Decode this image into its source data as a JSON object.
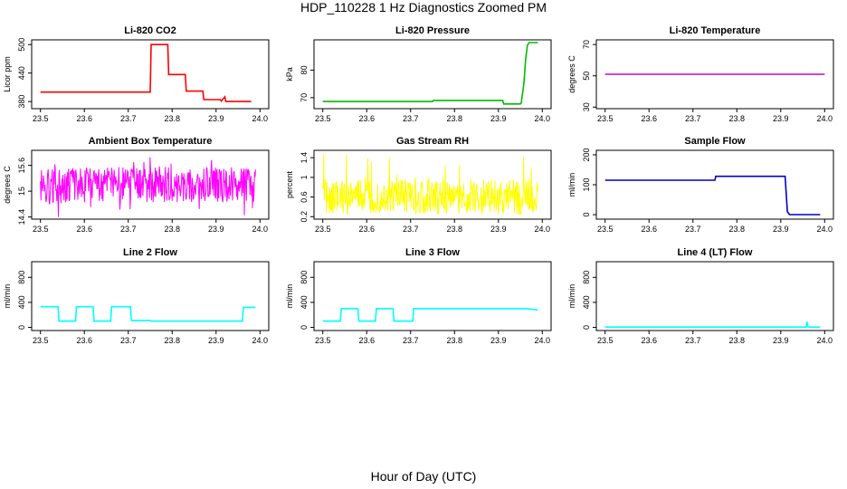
{
  "figure": {
    "title": "HDP_110228  1 Hz Diagnostics Zoomed PM",
    "xlabel": "Hour of Day (UTC)"
  },
  "chart_data": [
    {
      "type": "line",
      "title": "Li-820 CO2",
      "ylabel": "Licor ppm",
      "color": "#ff0000",
      "xlim": [
        23.5,
        24.0
      ],
      "ylim": [
        365,
        510
      ],
      "yticks": [
        380,
        440,
        500
      ],
      "xticks": [
        23.5,
        23.6,
        23.7,
        23.8,
        23.9,
        24.0
      ],
      "x": [
        23.5,
        23.75,
        23.752,
        23.79,
        23.792,
        23.83,
        23.832,
        23.87,
        23.872,
        23.91,
        23.912,
        23.92,
        23.922,
        23.98
      ],
      "y": [
        400,
        400,
        500,
        500,
        437,
        437,
        402,
        402,
        384,
        384,
        381,
        390,
        380,
        380
      ]
    },
    {
      "type": "line",
      "title": "Li-820 Pressure",
      "ylabel": "kPa",
      "color": "#00bb00",
      "xlim": [
        23.5,
        24.0
      ],
      "ylim": [
        66,
        91
      ],
      "yticks": [
        70,
        80
      ],
      "xticks": [
        23.5,
        23.6,
        23.7,
        23.8,
        23.9,
        24.0
      ],
      "x": [
        23.5,
        23.75,
        23.752,
        23.91,
        23.912,
        23.95,
        23.952,
        23.958,
        23.962,
        23.966,
        23.97,
        23.99
      ],
      "y": [
        68.6,
        68.6,
        69.0,
        69.0,
        67.7,
        67.7,
        68,
        75,
        84,
        89,
        90,
        90
      ]
    },
    {
      "type": "line",
      "title": "Li-820 Temperature",
      "ylabel": "degrees C",
      "color": "#cc00cc",
      "xlim": [
        23.5,
        24.0
      ],
      "ylim": [
        29,
        73
      ],
      "yticks": [
        30,
        50,
        70
      ],
      "xticks": [
        23.5,
        23.6,
        23.7,
        23.8,
        23.9,
        24.0
      ],
      "x": [
        23.5,
        24.0
      ],
      "y": [
        51,
        51
      ]
    },
    {
      "type": "line",
      "title": "Ambient Box Temperature",
      "ylabel": "degrees C",
      "color": "#ff00ff",
      "xlim": [
        23.5,
        24.0
      ],
      "ylim": [
        14.35,
        15.95
      ],
      "yticks": [
        14.4,
        15.0,
        15.6
      ],
      "xticks": [
        23.5,
        23.6,
        23.7,
        23.8,
        23.9,
        24.0
      ],
      "noise": {
        "x_start": 23.5,
        "x_end": 23.99,
        "center": 15.15,
        "min": 14.4,
        "max": 15.9
      }
    },
    {
      "type": "line",
      "title": "Gas Stream RH",
      "ylabel": "percent",
      "color": "#ffff00",
      "xlim": [
        23.5,
        24.0
      ],
      "ylim": [
        0.15,
        1.55
      ],
      "yticks": [
        0.2,
        0.6,
        1.0,
        1.4
      ],
      "xticks": [
        23.5,
        23.6,
        23.7,
        23.8,
        23.9,
        24.0
      ],
      "noise": {
        "x_start": 23.5,
        "x_end": 23.99,
        "center": 0.6,
        "min": 0.2,
        "max": 1.5
      }
    },
    {
      "type": "line",
      "title": "Sample Flow",
      "ylabel": "ml/min",
      "color": "#0000cc",
      "xlim": [
        23.5,
        24.0
      ],
      "ylim": [
        -15,
        215
      ],
      "yticks": [
        0,
        100,
        200
      ],
      "xticks": [
        23.5,
        23.6,
        23.7,
        23.8,
        23.9,
        24.0
      ],
      "x": [
        23.5,
        23.75,
        23.752,
        23.91,
        23.915,
        23.92,
        23.99
      ],
      "y": [
        115,
        115,
        128,
        128,
        10,
        0,
        0
      ]
    },
    {
      "type": "line",
      "title": "Line 2 Flow",
      "ylabel": "ml/min",
      "color": "#00ffff",
      "xlim": [
        23.5,
        24.0
      ],
      "ylim": [
        -50,
        1050
      ],
      "yticks": [
        0,
        400,
        800
      ],
      "xticks": [
        23.5,
        23.6,
        23.7,
        23.8,
        23.9,
        24.0
      ],
      "x": [
        23.5,
        23.54,
        23.542,
        23.58,
        23.582,
        23.62,
        23.622,
        23.66,
        23.662,
        23.705,
        23.707,
        23.75,
        23.752,
        23.96,
        23.962,
        23.99
      ],
      "y": [
        330,
        330,
        100,
        100,
        330,
        330,
        100,
        100,
        330,
        330,
        110,
        110,
        100,
        100,
        320,
        320
      ]
    },
    {
      "type": "line",
      "title": "Line 3 Flow",
      "ylabel": "ml/min",
      "color": "#00ffff",
      "xlim": [
        23.5,
        24.0
      ],
      "ylim": [
        -50,
        1050
      ],
      "yticks": [
        0,
        400,
        800
      ],
      "xticks": [
        23.5,
        23.6,
        23.7,
        23.8,
        23.9,
        24.0
      ],
      "x": [
        23.5,
        23.502,
        23.54,
        23.542,
        23.58,
        23.582,
        23.62,
        23.622,
        23.66,
        23.662,
        23.705,
        23.707,
        23.96,
        23.99
      ],
      "y": [
        100,
        100,
        100,
        300,
        300,
        100,
        100,
        300,
        300,
        100,
        100,
        300,
        300,
        280
      ]
    },
    {
      "type": "line",
      "title": "Line 4 (LT) Flow",
      "ylabel": "ml/min",
      "color": "#00ffff",
      "xlim": [
        23.5,
        24.0
      ],
      "ylim": [
        -50,
        1050
      ],
      "yticks": [
        0,
        400,
        800
      ],
      "xticks": [
        23.5,
        23.6,
        23.7,
        23.8,
        23.9,
        24.0
      ],
      "x": [
        23.5,
        23.958,
        23.96,
        23.962,
        23.964,
        23.99
      ],
      "y": [
        5,
        5,
        90,
        10,
        5,
        5
      ]
    }
  ]
}
